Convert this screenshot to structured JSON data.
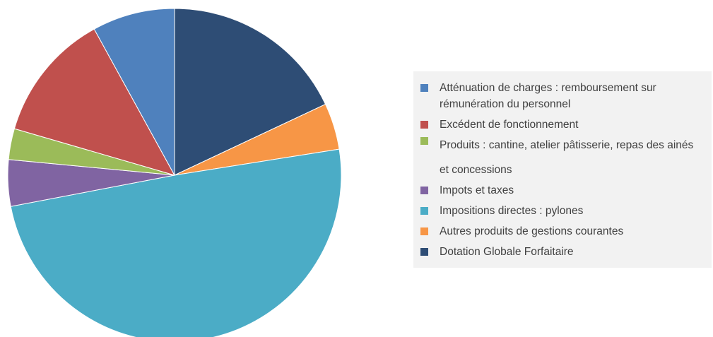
{
  "chart_data": {
    "type": "pie",
    "title": "",
    "legend_position": "right",
    "slices": [
      {
        "label": "Dotation Globale Forfaitaire",
        "value": 18.0,
        "color": "#2e4d75"
      },
      {
        "label": "Autres produits de gestions courantes",
        "value": 4.5,
        "color": "#f79646"
      },
      {
        "label": "Impositions directes : pylones",
        "value": 49.5,
        "color": "#4bacc6"
      },
      {
        "label": "Impots et taxes",
        "value": 4.5,
        "color": "#8064a2"
      },
      {
        "label": "Produits : cantine, atelier pâtisserie, repas des ainés et concessions",
        "value": 3.0,
        "color": "#9bbb59"
      },
      {
        "label": "Excédent de fonctionnement",
        "value": 12.5,
        "color": "#c0504d"
      },
      {
        "label": "Atténuation de charges : remboursement sur rémunération du personnel",
        "value": 8.0,
        "color": "#4f81bd"
      }
    ]
  },
  "legend": {
    "items": [
      {
        "label": "Atténuation de charges : remboursement sur rémunération du personnel",
        "color": "#4f81bd"
      },
      {
        "label": "Excédent de fonctionnement",
        "color": "#c0504d"
      },
      {
        "label": "Produits : cantine, atelier pâtisserie, repas des ainés et concessions",
        "color": "#9bbb59"
      },
      {
        "label": "Impots et taxes",
        "color": "#8064a2"
      },
      {
        "label": "Impositions directes : pylones",
        "color": "#4bacc6"
      },
      {
        "label": "Autres produits de gestions courantes",
        "color": "#f79646"
      },
      {
        "label": "Dotation Globale Forfaitaire",
        "color": "#2e4d75"
      }
    ]
  }
}
